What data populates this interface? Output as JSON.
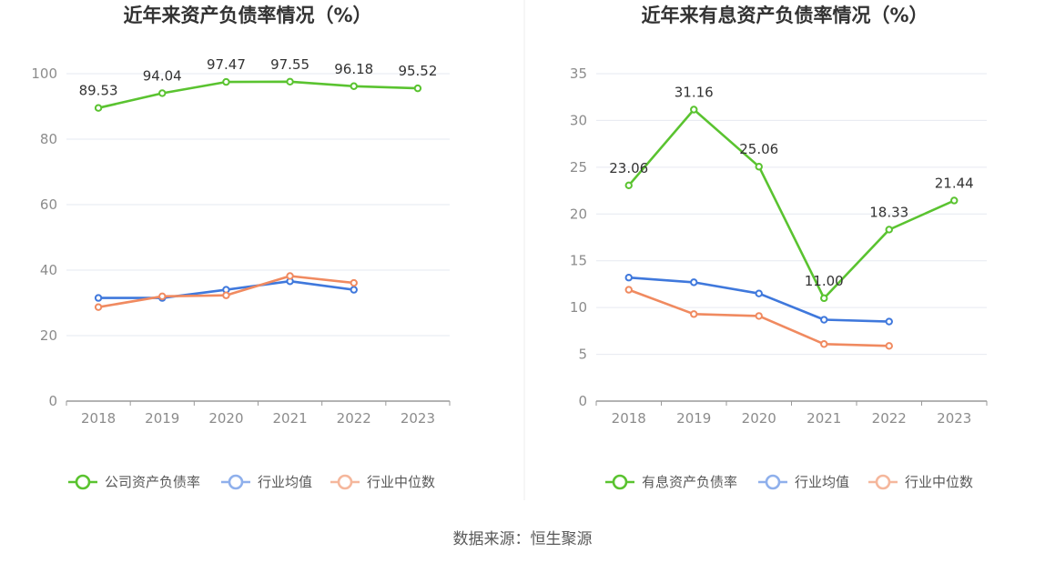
{
  "colors": {
    "company": "#5ac330",
    "avg": "#3f78dc",
    "median": "#f08a60",
    "avg_legend": "#8fb0ec",
    "median_legend": "#f5b79c",
    "grid": "#e6e9f0",
    "axis": "#9a9a9a"
  },
  "source": "数据来源：恒生聚源",
  "chart_data": [
    {
      "type": "line",
      "title": "近年来资产负债率情况（%）",
      "categories": [
        "2018",
        "2019",
        "2020",
        "2021",
        "2022",
        "2023"
      ],
      "ylim": [
        0,
        100
      ],
      "yticks": [
        0,
        20,
        40,
        60,
        80,
        100
      ],
      "grid": true,
      "legend_position": "bottom",
      "series": [
        {
          "name": "公司资产负债率",
          "key": "company",
          "values": [
            89.53,
            94.04,
            97.47,
            97.55,
            96.18,
            95.52
          ],
          "labels": [
            "89.53",
            "94.04",
            "97.47",
            "97.55",
            "96.18",
            "95.52"
          ]
        },
        {
          "name": "行业均值",
          "key": "avg",
          "values": [
            31.5,
            31.5,
            34.0,
            36.6,
            34.0,
            null
          ]
        },
        {
          "name": "行业中位数",
          "key": "median",
          "values": [
            28.7,
            32.0,
            32.3,
            38.2,
            36.1,
            null
          ]
        }
      ]
    },
    {
      "type": "line",
      "title": "近年来有息资产负债率情况（%）",
      "categories": [
        "2018",
        "2019",
        "2020",
        "2021",
        "2022",
        "2023"
      ],
      "ylim": [
        0,
        35
      ],
      "yticks": [
        0,
        5,
        10,
        15,
        20,
        25,
        30,
        35
      ],
      "grid": true,
      "legend_position": "bottom",
      "series": [
        {
          "name": "有息资产负债率",
          "key": "company",
          "values": [
            23.06,
            31.16,
            25.06,
            11.0,
            18.33,
            21.44
          ],
          "labels": [
            "23.06",
            "31.16",
            "25.06",
            "11.00",
            "18.33",
            "21.44"
          ]
        },
        {
          "name": "行业均值",
          "key": "avg",
          "values": [
            13.2,
            12.7,
            11.5,
            8.7,
            8.5,
            null
          ]
        },
        {
          "name": "行业中位数",
          "key": "median",
          "values": [
            11.9,
            9.3,
            9.1,
            6.1,
            5.9,
            null
          ]
        }
      ]
    }
  ]
}
